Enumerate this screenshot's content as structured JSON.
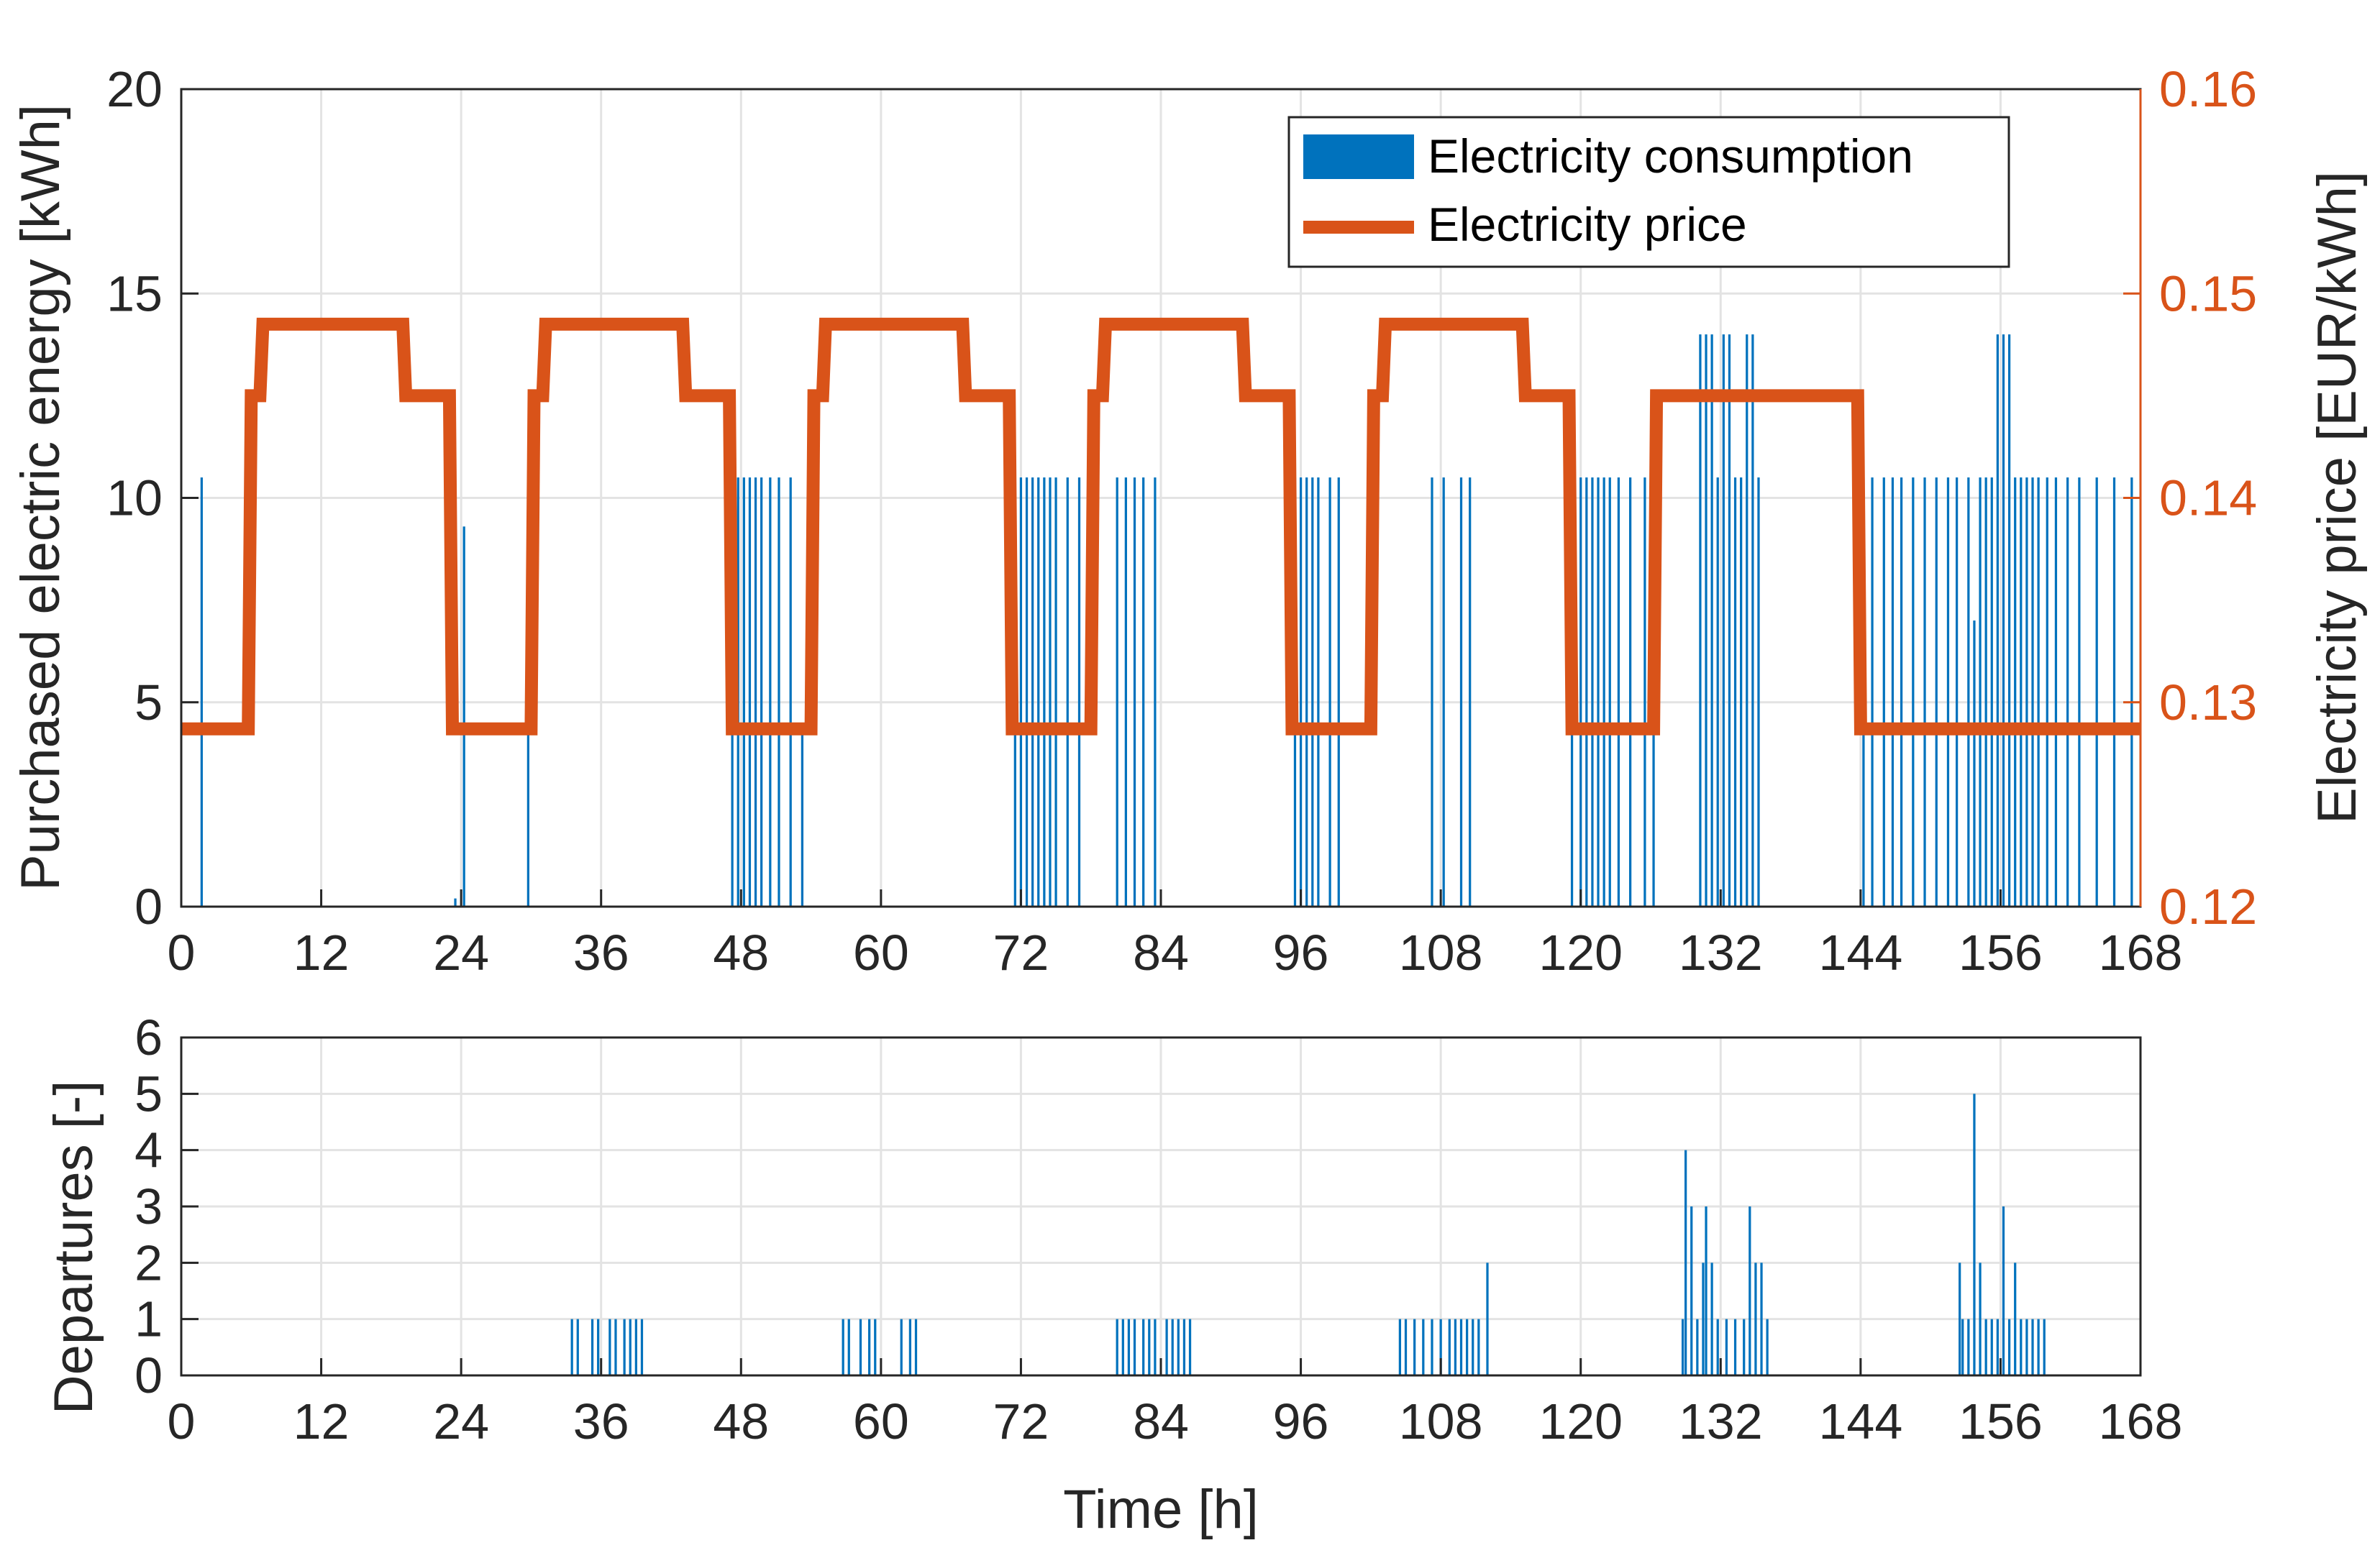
{
  "colors": {
    "consumption": "#0072BD",
    "price": "#D95319",
    "grid": "#e3e3e3",
    "axis": "#262626"
  },
  "chart_data": [
    {
      "type": "bar",
      "xlabel": "",
      "ylabel": "Purchased electric energy [kWh]",
      "ylabel_right": "Electricity price [EUR/kWh]",
      "xlim": [
        0,
        168
      ],
      "ylim": [
        0,
        20
      ],
      "ylim_right": [
        0.12,
        0.16
      ],
      "grid": true,
      "legend_position": "top-right",
      "xticks": [
        "0",
        "12",
        "24",
        "36",
        "48",
        "60",
        "72",
        "84",
        "96",
        "108",
        "120",
        "132",
        "144",
        "156",
        "168"
      ],
      "yticks": [
        "0",
        "5",
        "10",
        "15",
        "20"
      ],
      "yticks_right": [
        "0.12",
        "0.13",
        "0.14",
        "0.15",
        "0.16"
      ],
      "legend": [
        "Electricity consumption",
        "Electricity price"
      ],
      "series": [
        {
          "name": "Electricity consumption",
          "type": "bar",
          "x": [
            1.75,
            23.5,
            24.25,
            29.75,
            47.25,
            47.75,
            48.25,
            48.75,
            49.25,
            49.75,
            50.5,
            51.25,
            52.25,
            53.25,
            71.5,
            72.0,
            72.5,
            73.0,
            73.5,
            74.0,
            74.5,
            75.0,
            76.0,
            77.0,
            80.25,
            81.0,
            81.75,
            82.5,
            83.5,
            95.5,
            96.0,
            96.5,
            97.0,
            97.5,
            98.5,
            99.25,
            107.25,
            108.25,
            109.75,
            110.5,
            119.25,
            120.0,
            120.5,
            121.0,
            121.5,
            122.0,
            122.5,
            123.25,
            124.25,
            125.5,
            126.25,
            130.25,
            130.75,
            131.25,
            131.75,
            132.25,
            132.75,
            133.25,
            133.75,
            134.25,
            134.75,
            135.25,
            144.25,
            145.0,
            146.0,
            146.75,
            147.5,
            148.5,
            149.5,
            150.5,
            151.5,
            152.25,
            153.25,
            153.75,
            154.25,
            154.75,
            155.25,
            155.75,
            156.25,
            156.75,
            157.25,
            157.75,
            158.25,
            158.75,
            159.25,
            160.0,
            160.75,
            161.75,
            162.75,
            164.25,
            165.75,
            167.25
          ],
          "values": [
            10.5,
            0.2,
            9.3,
            4.3,
            10.5,
            10.5,
            10.5,
            10.5,
            10.5,
            10.5,
            10.5,
            10.5,
            10.5,
            4.3,
            10.5,
            10.5,
            10.5,
            10.5,
            10.5,
            10.5,
            10.5,
            10.5,
            10.5,
            10.5,
            10.5,
            10.5,
            10.5,
            10.5,
            10.5,
            10.5,
            10.5,
            10.5,
            10.5,
            10.5,
            10.5,
            10.5,
            10.5,
            10.5,
            10.5,
            10.5,
            10.5,
            10.5,
            10.5,
            10.5,
            10.5,
            10.5,
            10.5,
            10.5,
            10.5,
            10.5,
            10.5,
            14,
            14,
            14,
            10.5,
            14,
            14,
            10.5,
            10.5,
            14,
            14,
            10.5,
            10.5,
            10.5,
            10.5,
            10.5,
            10.5,
            10.5,
            10.5,
            10.5,
            10.5,
            10.5,
            10.5,
            7,
            10.5,
            10.5,
            10.5,
            14,
            14,
            14,
            10.5,
            10.5,
            10.5,
            10.5,
            10.5,
            10.5,
            10.5,
            10.5,
            10.5,
            10.5,
            10.5,
            10.5
          ]
        },
        {
          "name": "Electricity price",
          "type": "step",
          "axis": "right",
          "x": [
            0,
            5.75,
            6,
            6.75,
            7,
            19,
            19.25,
            23,
            23.25,
            30,
            30.25,
            31,
            31.25,
            43,
            43.25,
            47,
            47.25,
            54,
            54.25,
            55,
            55.25,
            67,
            67.25,
            71,
            71.25,
            78,
            78.25,
            79,
            79.25,
            91,
            91.25,
            95,
            95.25,
            102,
            102.25,
            103,
            103.25,
            115,
            115.25,
            119,
            119.25,
            126.25,
            126.5,
            143.75,
            144,
            168
          ],
          "values": [
            0.1287,
            0.1287,
            0.145,
            0.145,
            0.1485,
            0.1485,
            0.145,
            0.145,
            0.1287,
            0.1287,
            0.145,
            0.145,
            0.1485,
            0.1485,
            0.145,
            0.145,
            0.1287,
            0.1287,
            0.145,
            0.145,
            0.1485,
            0.1485,
            0.145,
            0.145,
            0.1287,
            0.1287,
            0.145,
            0.145,
            0.1485,
            0.1485,
            0.145,
            0.145,
            0.1287,
            0.1287,
            0.145,
            0.145,
            0.1485,
            0.1485,
            0.145,
            0.145,
            0.1287,
            0.1287,
            0.145,
            0.145,
            0.1287,
            0.1287
          ]
        }
      ]
    },
    {
      "type": "bar",
      "xlabel": "Time [h]",
      "ylabel": "Departures [-]",
      "xlim": [
        0,
        168
      ],
      "ylim": [
        0,
        6
      ],
      "grid": true,
      "xticks": [
        "0",
        "12",
        "24",
        "36",
        "48",
        "60",
        "72",
        "84",
        "96",
        "108",
        "120",
        "132",
        "144",
        "156",
        "168"
      ],
      "yticks": [
        "0",
        "1",
        "2",
        "3",
        "4",
        "5",
        "6"
      ],
      "series": [
        {
          "name": "Departures",
          "x": [
            33.5,
            34.0,
            35.25,
            35.75,
            36.75,
            37.25,
            38.0,
            38.5,
            39.0,
            39.5,
            56.75,
            57.25,
            58.25,
            59.0,
            59.5,
            61.75,
            62.5,
            63.0,
            80.25,
            80.75,
            81.25,
            81.75,
            82.5,
            83.0,
            83.5,
            84.5,
            85.0,
            85.5,
            86.0,
            86.5,
            104.5,
            105.0,
            105.75,
            106.5,
            107.25,
            108.0,
            108.75,
            109.25,
            109.75,
            110.25,
            110.75,
            111.25,
            112.0,
            128.75,
            129.0,
            129.5,
            130.0,
            130.5,
            130.75,
            131.25,
            131.75,
            132.5,
            133.25,
            134.0,
            134.5,
            135.0,
            135.5,
            136.0,
            152.5,
            152.75,
            153.25,
            153.75,
            154.25,
            154.75,
            155.25,
            155.75,
            156.25,
            156.75,
            157.25,
            157.75,
            158.25,
            158.75,
            159.25,
            159.75
          ],
          "values": [
            1,
            1,
            1,
            1,
            1,
            1,
            1,
            1,
            1,
            1,
            1,
            1,
            1,
            1,
            1,
            1,
            1,
            1,
            1,
            1,
            1,
            1,
            1,
            1,
            1,
            1,
            1,
            1,
            1,
            1,
            1,
            1,
            1,
            1,
            1,
            1,
            1,
            1,
            1,
            1,
            1,
            1,
            2,
            1,
            4,
            3,
            1,
            2,
            3,
            2,
            1,
            1,
            1,
            1,
            3,
            2,
            2,
            1,
            2,
            1,
            1,
            5,
            2,
            1,
            1,
            1,
            3,
            1,
            2,
            1,
            1,
            1,
            1,
            1
          ]
        }
      ]
    }
  ]
}
